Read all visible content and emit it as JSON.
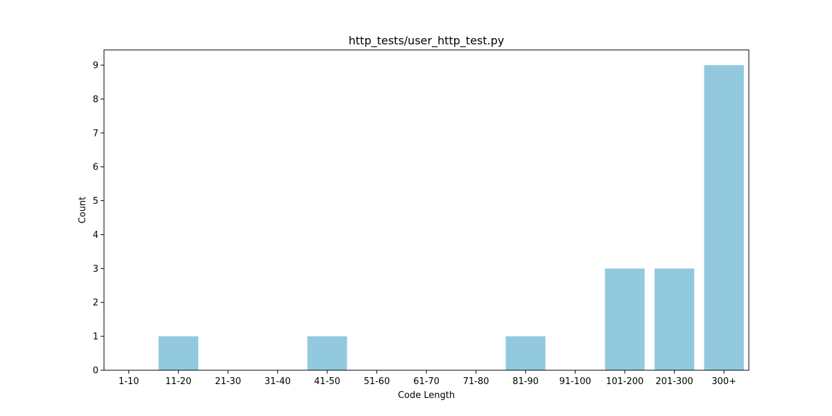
{
  "chart_data": {
    "type": "bar",
    "title": "http_tests/user_http_test.py",
    "xlabel": "Code Length",
    "ylabel": "Count",
    "categories": [
      "1-10",
      "11-20",
      "21-30",
      "31-40",
      "41-50",
      "51-60",
      "61-70",
      "71-80",
      "81-90",
      "91-100",
      "101-200",
      "201-300",
      "300+"
    ],
    "values": [
      0,
      1,
      0,
      0,
      1,
      0,
      0,
      0,
      1,
      0,
      3,
      3,
      9
    ],
    "ylim": [
      0,
      9.45
    ],
    "yticks": [
      0,
      1,
      2,
      3,
      4,
      5,
      6,
      7,
      8,
      9
    ],
    "bar_color": "#92c9de",
    "grid": false
  }
}
